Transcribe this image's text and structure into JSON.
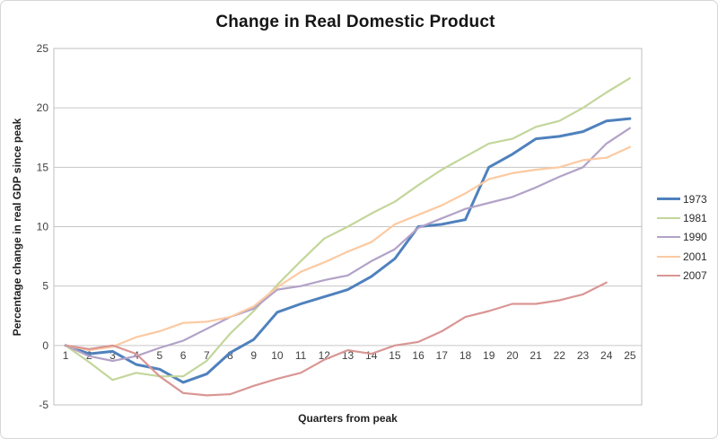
{
  "chart_data": {
    "type": "line",
    "title": "Change in Real Domestic Product",
    "xlabel": "Quarters from peak",
    "ylabel": "Percentage change in real GDP since peak",
    "x": [
      1,
      2,
      3,
      4,
      5,
      6,
      7,
      8,
      9,
      10,
      11,
      12,
      13,
      14,
      15,
      16,
      17,
      18,
      19,
      20,
      21,
      22,
      23,
      24,
      25
    ],
    "ylim": [
      -5,
      25
    ],
    "yticks": [
      -5,
      0,
      5,
      10,
      15,
      20,
      25
    ],
    "grid": true,
    "legend_position": "right",
    "colors": {
      "gridline": "#c6c6c6",
      "plot_border": "#bfbfbf",
      "tick_text": "#404040"
    },
    "series": [
      {
        "name": "1973",
        "color": "#4f81bd",
        "stroke_width": 3,
        "values": [
          0,
          -0.7,
          -0.5,
          -1.6,
          -2.0,
          -3.1,
          -2.4,
          -0.6,
          0.5,
          2.8,
          3.5,
          4.1,
          4.7,
          5.8,
          7.3,
          10.0,
          10.2,
          10.6,
          15.0,
          16.1,
          17.4,
          17.6,
          18.0,
          18.9,
          19.1
        ]
      },
      {
        "name": "1981",
        "color": "#c3d69b",
        "stroke_width": 2.2,
        "values": [
          0,
          -1.4,
          -2.9,
          -2.3,
          -2.6,
          -2.6,
          -1.3,
          1.0,
          2.9,
          5.1,
          7.1,
          9.0,
          10.0,
          11.1,
          12.1,
          13.5,
          14.8,
          15.9,
          17.0,
          17.4,
          18.4,
          18.9,
          20.0,
          21.3,
          22.5
        ]
      },
      {
        "name": "1990",
        "color": "#b2a2c7",
        "stroke_width": 2.2,
        "values": [
          0,
          -0.9,
          -1.3,
          -0.9,
          -0.2,
          0.4,
          1.4,
          2.4,
          3.1,
          4.7,
          5.0,
          5.5,
          5.9,
          7.1,
          8.1,
          9.9,
          10.7,
          11.5,
          12.0,
          12.5,
          13.3,
          14.2,
          15.0,
          17.0,
          18.3
        ]
      },
      {
        "name": "2001",
        "color": "#fbcaa2",
        "stroke_width": 2.2,
        "values": [
          0,
          -0.4,
          -0.1,
          0.7,
          1.2,
          1.9,
          2.0,
          2.4,
          3.3,
          4.9,
          6.2,
          7.0,
          7.9,
          8.7,
          10.2,
          11.0,
          11.8,
          12.8,
          14.0,
          14.5,
          14.8,
          15.0,
          15.6,
          15.8,
          16.7
        ]
      },
      {
        "name": "2007",
        "color": "#d99694",
        "stroke_width": 2.2,
        "values": [
          0,
          -0.3,
          0.0,
          -0.7,
          -2.6,
          -4.0,
          -4.2,
          -4.1,
          -3.4,
          -2.8,
          -2.3,
          -1.2,
          -0.4,
          -0.7,
          0.0,
          0.3,
          1.2,
          2.4,
          2.9,
          3.5,
          3.5,
          3.8,
          4.3,
          5.3
        ]
      }
    ]
  }
}
